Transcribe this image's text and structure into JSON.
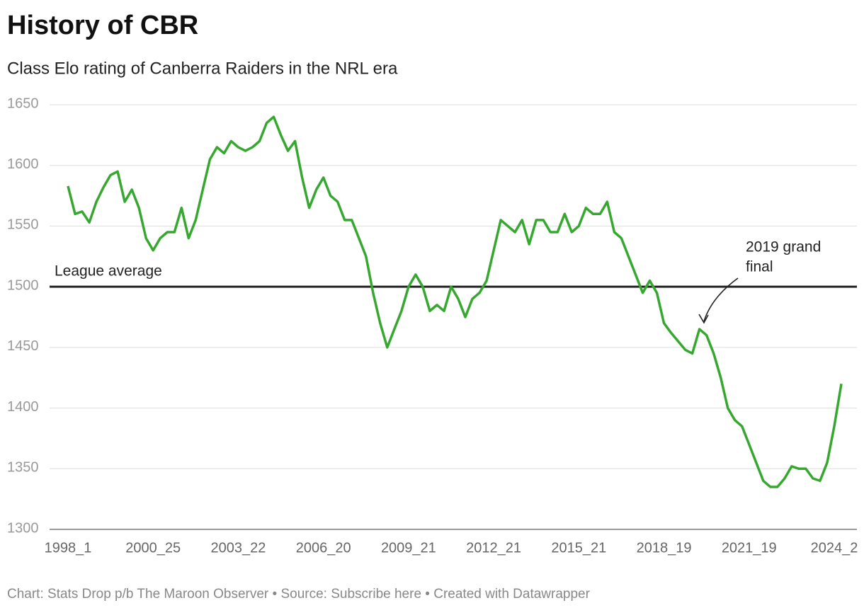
{
  "chart_data": {
    "type": "line",
    "title": "History of CBR",
    "subtitle": "Class Elo rating of Canberra Raiders in the NRL era",
    "footer": "Chart: Stats Drop p/b The Maroon Observer • Source: Subscribe here • Created with Datawrapper",
    "categories": [
      "1998_1",
      null,
      null,
      null,
      null,
      null,
      null,
      null,
      null,
      null,
      null,
      null,
      "2000_25",
      null,
      null,
      null,
      null,
      null,
      null,
      null,
      null,
      null,
      null,
      null,
      "2003_22",
      null,
      null,
      null,
      null,
      null,
      null,
      null,
      null,
      null,
      null,
      null,
      "2006_20",
      null,
      null,
      null,
      null,
      null,
      null,
      null,
      null,
      null,
      null,
      null,
      "2009_21",
      null,
      null,
      null,
      null,
      null,
      null,
      null,
      null,
      null,
      null,
      null,
      "2012_21",
      null,
      null,
      null,
      null,
      null,
      null,
      null,
      null,
      null,
      null,
      null,
      "2015_21",
      null,
      null,
      null,
      null,
      null,
      null,
      null,
      null,
      null,
      null,
      null,
      "2018_19",
      null,
      null,
      null,
      null,
      null,
      null,
      null,
      null,
      null,
      null,
      null,
      "2021_19",
      null,
      null,
      null,
      null,
      null,
      null,
      null,
      null,
      null,
      null,
      null,
      "2024_2",
      null
    ],
    "series": [
      {
        "color": "#36a82f",
        "values": [
          1583,
          1560,
          1562,
          1553,
          1570,
          1582,
          1592,
          1595,
          1570,
          1580,
          1565,
          1540,
          1530,
          1540,
          1545,
          1545,
          1565,
          1540,
          1555,
          1580,
          1605,
          1615,
          1610,
          1620,
          1615,
          1612,
          1615,
          1620,
          1635,
          1640,
          1625,
          1612,
          1620,
          1590,
          1565,
          1580,
          1590,
          1575,
          1570,
          1555,
          1555,
          1540,
          1525,
          1495,
          1470,
          1450,
          1465,
          1480,
          1500,
          1510,
          1500,
          1480,
          1485,
          1480,
          1500,
          1490,
          1475,
          1490,
          1495,
          1505,
          1530,
          1555,
          1550,
          1545,
          1555,
          1535,
          1555,
          1555,
          1545,
          1545,
          1560,
          1545,
          1550,
          1565,
          1560,
          1560,
          1570,
          1545,
          1540,
          1525,
          1510,
          1495,
          1505,
          1495,
          1470,
          1462,
          1455,
          1448,
          1445,
          1465,
          1460,
          1445,
          1425,
          1400,
          1390,
          1385,
          1370,
          1355,
          1340,
          1335,
          1335,
          1342,
          1352,
          1350,
          1350,
          1342,
          1340,
          1355,
          1385,
          1420
        ]
      }
    ],
    "ylim": [
      1300,
      1650
    ],
    "yticks": [
      1300,
      1350,
      1400,
      1450,
      1500,
      1550,
      1600,
      1650
    ],
    "grid": true,
    "reference_line": {
      "value": 1500,
      "label": "League average",
      "color": "#222222"
    },
    "annotation": {
      "lines": [
        "2019 grand",
        "final"
      ]
    }
  }
}
